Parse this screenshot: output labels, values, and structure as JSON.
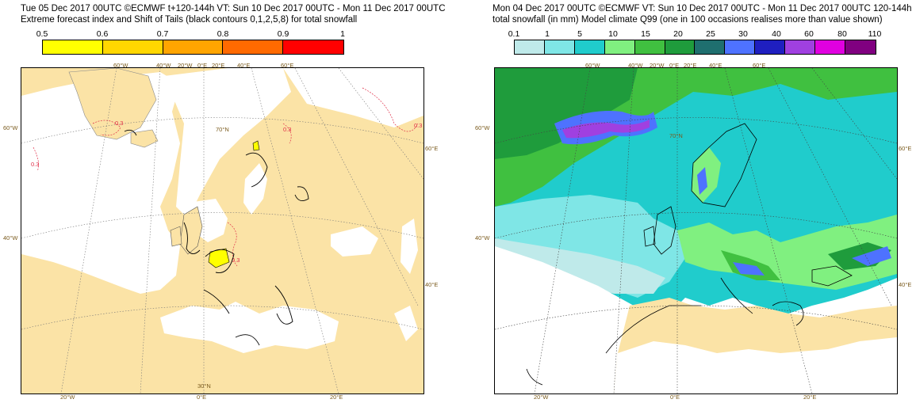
{
  "left": {
    "title_line1": "Tue 05 Dec 2017 00UTC ©ECMWF t+120-144h  VT: Sun 10 Dec 2017 00UTC - Mon 11 Dec 2017 00UTC",
    "title_line2": "Extreme forecast index and Shift of Tails (black contours 0,1,2,5,8) for total snowfall",
    "legend": {
      "ticks": [
        "0.5",
        "0.6",
        "0.7",
        "0.8",
        "0.9",
        "1"
      ],
      "colors": [
        "#ffff00",
        "#ffd700",
        "#ffa500",
        "#ff6a00",
        "#ff0000"
      ]
    },
    "map": {
      "land_color": "#fbe3a6",
      "sea_color": "#ffffff",
      "contour_label": "0.3",
      "lon_top": [
        "60°W",
        "40°W",
        "20°W",
        "0°E",
        "20°E",
        "40°E",
        "60°E"
      ],
      "lon_bottom": [
        "20°W",
        "0°E",
        "20°E"
      ],
      "lat_left": [
        "60°W",
        "40°W"
      ],
      "lat_right": [
        "60°E",
        "40°E"
      ],
      "lat_inner": [
        "70°N",
        "30°N"
      ]
    }
  },
  "right": {
    "title_line1": "Mon 04 Dec 2017 00UTC ©ECMWF VT: Sun 10 Dec 2017 00UTC - Mon 11 Dec 2017 00UTC   120-144h",
    "title_line2": "total snowfall (in mm)  Model climate Q99 (one in 100 occasions realises more than value shown)",
    "legend": {
      "ticks": [
        "0.1",
        "1",
        "5",
        "10",
        "15",
        "20",
        "25",
        "30",
        "40",
        "60",
        "80",
        "110"
      ],
      "colors": [
        "#bfeaea",
        "#7fe6e6",
        "#20cccc",
        "#80f080",
        "#40c040",
        "#1f9c3c",
        "#1f6f6f",
        "#4e72ff",
        "#1f1fc0",
        "#a040e0",
        "#e000e0",
        "#800080"
      ]
    },
    "map": {
      "land_color": "#fbe3a6",
      "lon_top": [
        "60°W",
        "40°W",
        "20°W",
        "0°E",
        "20°E",
        "40°E",
        "60°E"
      ],
      "lon_bottom": [
        "20°W",
        "0°E",
        "20°E"
      ],
      "lat_left": [
        "60°W",
        "40°W"
      ],
      "lat_right": [
        "60°E",
        "40°E"
      ],
      "lat_inner": [
        "70°N"
      ]
    }
  }
}
